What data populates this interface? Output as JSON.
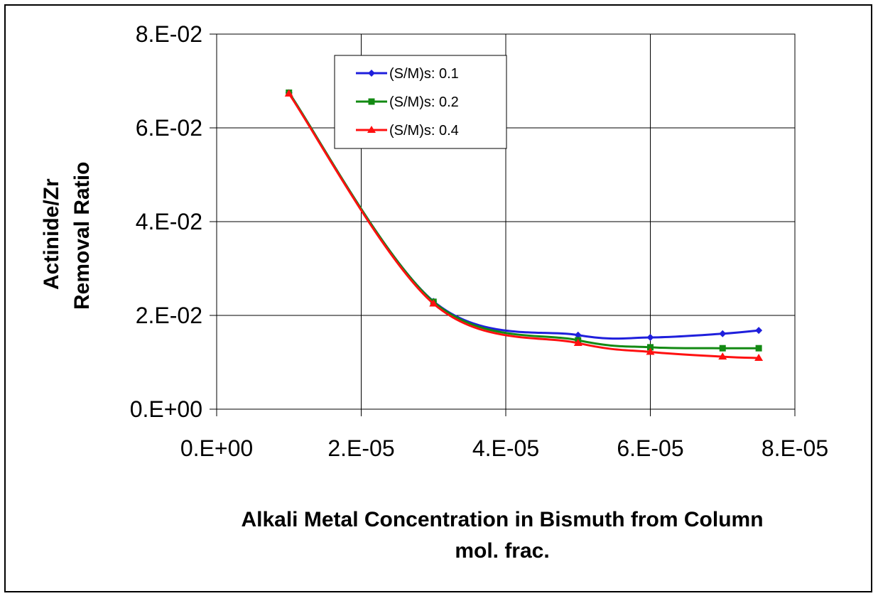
{
  "chart_data": {
    "type": "line",
    "title": "",
    "xlabel_lines": [
      "Alkali Metal Concentration in Bismuth from Column",
      "mol. frac."
    ],
    "ylabel_lines": [
      "Actinide/Zr",
      "Removal Ratio"
    ],
    "xlim": [
      0,
      8e-05
    ],
    "ylim": [
      0,
      0.08
    ],
    "x_ticks": [
      0,
      2e-05,
      4e-05,
      6e-05,
      8e-05
    ],
    "y_ticks": [
      0,
      0.02,
      0.04,
      0.06,
      0.08
    ],
    "x_tick_labels": [
      "0.E+00",
      "2.E-05",
      "4.E-05",
      "6.E-05",
      "8.E-05"
    ],
    "y_tick_labels": [
      "0.E+00",
      "2.E-02",
      "4.E-02",
      "6.E-02",
      "8.E-02"
    ],
    "grid": true,
    "legend_position": "top-left inside plot",
    "series": [
      {
        "name": "(S/M)s: 0.1",
        "color": "#1f1fdc",
        "marker": "diamond",
        "x": [
          1e-05,
          3e-05,
          5e-05,
          6e-05,
          7e-05,
          7.5e-05
        ],
        "y": [
          0.0675,
          0.023,
          0.0158,
          0.0153,
          0.0161,
          0.0168
        ]
      },
      {
        "name": "(S/M)s: 0.2",
        "color": "#138a13",
        "marker": "square",
        "x": [
          1e-05,
          3e-05,
          5e-05,
          6e-05,
          7e-05,
          7.5e-05
        ],
        "y": [
          0.0675,
          0.0229,
          0.0147,
          0.0132,
          0.013,
          0.013
        ]
      },
      {
        "name": "(S/M)s: 0.4",
        "color": "#ff1010",
        "marker": "triangle",
        "x": [
          1e-05,
          3e-05,
          5e-05,
          6e-05,
          7e-05,
          7.5e-05
        ],
        "y": [
          0.0673,
          0.0225,
          0.0141,
          0.0122,
          0.0112,
          0.0109
        ]
      }
    ]
  }
}
